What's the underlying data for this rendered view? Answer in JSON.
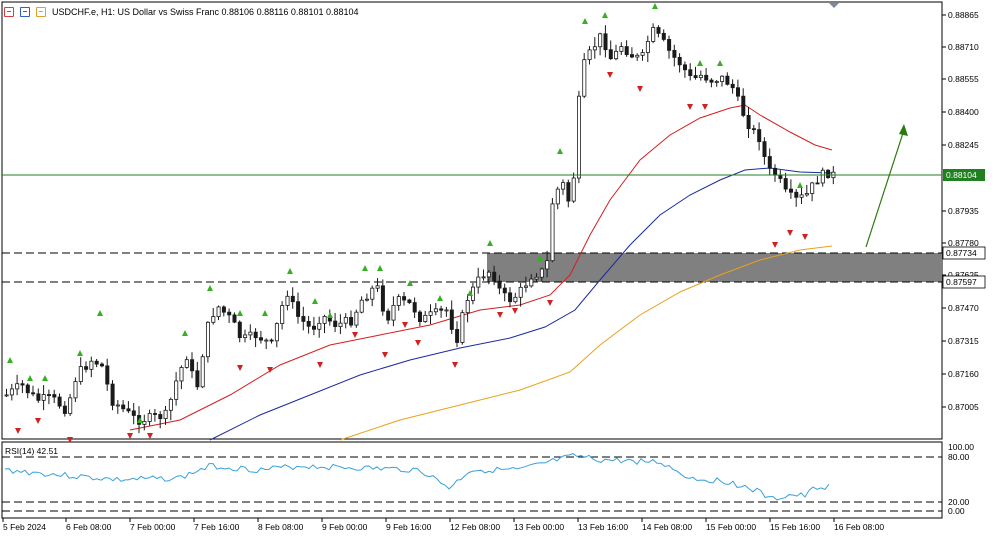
{
  "header": {
    "title": "USDCHF.e, H1:  US Dollar vs Swiss Franc  0.88106 0.88116 0.88101 0.88104"
  },
  "price_axis": {
    "labels": [
      "0.88865",
      "0.88710",
      "0.88555",
      "0.88400",
      "0.88245",
      "0.87935",
      "0.87780",
      "0.87625",
      "0.87470",
      "0.87315",
      "0.87160",
      "0.87005"
    ],
    "current_price": "0.88104",
    "zone_top": "0.87734",
    "zone_bottom": "0.87597"
  },
  "rsi": {
    "label": "RSI(14) 42.51",
    "levels": [
      "100.00",
      "80.00",
      "20.00",
      "0.00"
    ]
  },
  "time_axis": {
    "labels": [
      "5 Feb 2024",
      "6 Feb 08:00",
      "7 Feb 00:00",
      "7 Feb 16:00",
      "8 Feb 08:00",
      "9 Feb 00:00",
      "9 Feb 16:00",
      "12 Feb 08:00",
      "13 Feb 00:00",
      "13 Feb 16:00",
      "14 Feb 08:00",
      "15 Feb 00:00",
      "15 Feb 16:00",
      "16 Feb 08:00"
    ]
  },
  "colors": {
    "bull_candle": "#1a1a1a",
    "bear_candle": "#1a1a1a",
    "ma_fast": "#d02020",
    "ma_mid": "#1a2aa0",
    "ma_slow": "#e8a020",
    "price_line": "#208020",
    "rsi_line": "#3aa0d8",
    "zone": "#808080",
    "arrow": "#2a7a10"
  },
  "icons": [
    "chart-bars-icon",
    "chart-candles-icon",
    "chart-line-icon"
  ]
}
